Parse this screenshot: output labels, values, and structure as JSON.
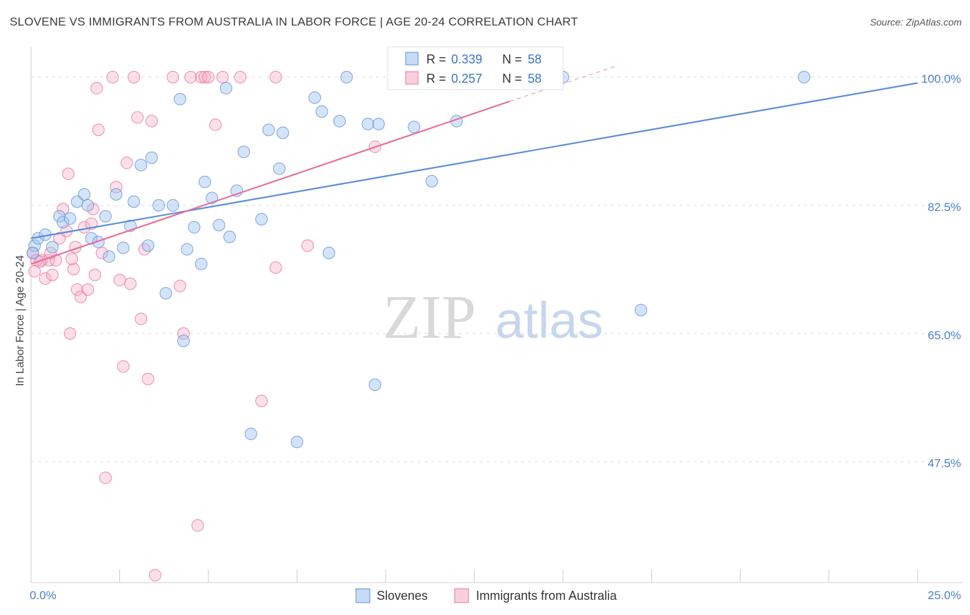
{
  "title": "SLOVENE VS IMMIGRANTS FROM AUSTRALIA IN LABOR FORCE | AGE 20-24 CORRELATION CHART",
  "source": "Source: ZipAtlas.com",
  "watermark": {
    "zip": "ZIP",
    "atlas": "atlas"
  },
  "colors": {
    "blue": "#5b8fd8",
    "blue_fill": "rgba(160,195,240,0.45)",
    "pink": "#e8709b",
    "pink_fill": "rgba(245,175,200,0.40)",
    "grid": "#dddddd"
  },
  "legend": {
    "items": [
      {
        "r_label": "R =",
        "r_value": "0.339",
        "n_label": "N =",
        "n_value": "58"
      },
      {
        "r_label": "R =",
        "r_value": "0.257",
        "n_label": "N =",
        "n_value": "58"
      }
    ]
  },
  "chart_data": {
    "type": "scatter",
    "xlabel": "",
    "ylabel": "In Labor Force | Age 20-24",
    "xlim": [
      0,
      25
    ],
    "ylim": [
      31,
      103
    ],
    "x_tick_labels": [
      {
        "value": 0,
        "label": "0.0%"
      },
      {
        "value": 25,
        "label": "25.0%"
      }
    ],
    "y_ticks": [
      {
        "value": 100,
        "label": "100.0%"
      },
      {
        "value": 82.5,
        "label": "82.5%"
      },
      {
        "value": 65,
        "label": "65.0%"
      },
      {
        "value": 47.5,
        "label": "47.5%"
      }
    ],
    "grid": true,
    "legend_position": "top-center",
    "series": [
      {
        "name": "Slovenes",
        "color": "#5b8fd8",
        "trend": {
          "x0": 0,
          "y0": 78.0,
          "x1": 25,
          "y1": 99.2
        },
        "points": [
          [
            0.1,
            77.0
          ],
          [
            0.2,
            78.0
          ],
          [
            0.4,
            78.5
          ],
          [
            0.6,
            76.8
          ],
          [
            0.8,
            81.0
          ],
          [
            0.9,
            80.2
          ],
          [
            1.1,
            80.7
          ],
          [
            1.3,
            83.0
          ],
          [
            1.5,
            84.0
          ],
          [
            1.6,
            82.5
          ],
          [
            1.7,
            78.0
          ],
          [
            1.9,
            77.5
          ],
          [
            2.1,
            81.0
          ],
          [
            2.2,
            75.5
          ],
          [
            2.4,
            84.0
          ],
          [
            2.6,
            76.7
          ],
          [
            2.8,
            79.7
          ],
          [
            2.9,
            83.0
          ],
          [
            3.1,
            88.0
          ],
          [
            3.3,
            77.0
          ],
          [
            3.4,
            89.0
          ],
          [
            3.6,
            82.5
          ],
          [
            3.8,
            70.5
          ],
          [
            4.0,
            82.5
          ],
          [
            4.2,
            97.0
          ],
          [
            4.3,
            64.0
          ],
          [
            4.4,
            76.5
          ],
          [
            4.6,
            79.5
          ],
          [
            4.8,
            74.5
          ],
          [
            4.9,
            85.7
          ],
          [
            5.1,
            83.5
          ],
          [
            5.3,
            79.8
          ],
          [
            5.5,
            98.5
          ],
          [
            5.6,
            78.2
          ],
          [
            5.8,
            84.5
          ],
          [
            6.0,
            89.8
          ],
          [
            6.2,
            51.3
          ],
          [
            6.5,
            80.6
          ],
          [
            6.7,
            92.8
          ],
          [
            7.0,
            87.5
          ],
          [
            7.1,
            92.4
          ],
          [
            7.5,
            50.2
          ],
          [
            8.0,
            97.2
          ],
          [
            8.2,
            95.3
          ],
          [
            8.4,
            76.0
          ],
          [
            8.7,
            94.0
          ],
          [
            8.9,
            100.0
          ],
          [
            9.5,
            93.6
          ],
          [
            9.7,
            58.0
          ],
          [
            9.8,
            93.6
          ],
          [
            10.8,
            93.2
          ],
          [
            11.3,
            85.8
          ],
          [
            12.0,
            94.0
          ],
          [
            12.5,
            100.0
          ],
          [
            15.0,
            100.0
          ],
          [
            17.2,
            68.2
          ],
          [
            21.8,
            100.0
          ],
          [
            0.05,
            76.0
          ]
        ]
      },
      {
        "name": "Immigrants from Australia",
        "color": "#e8709b",
        "trend": {
          "x0": 0,
          "y0": 74.5,
          "x1": 13.5,
          "y1": 96.7,
          "dash_x1": 16.5,
          "dash_y1": 101.5
        },
        "points": [
          [
            0.05,
            76.0
          ],
          [
            0.1,
            73.5
          ],
          [
            0.15,
            75.0
          ],
          [
            0.3,
            75.0
          ],
          [
            0.4,
            72.5
          ],
          [
            0.5,
            75.0
          ],
          [
            0.6,
            73.0
          ],
          [
            0.7,
            75.0
          ],
          [
            0.8,
            78.0
          ],
          [
            0.9,
            82.0
          ],
          [
            1.0,
            79.0
          ],
          [
            1.05,
            86.8
          ],
          [
            1.1,
            65.0
          ],
          [
            1.2,
            73.8
          ],
          [
            1.3,
            71.0
          ],
          [
            1.4,
            70.0
          ],
          [
            1.5,
            79.5
          ],
          [
            1.6,
            71.0
          ],
          [
            1.7,
            80.0
          ],
          [
            1.75,
            82.0
          ],
          [
            1.8,
            73.0
          ],
          [
            1.85,
            98.5
          ],
          [
            1.9,
            92.8
          ],
          [
            2.0,
            76.0
          ],
          [
            2.1,
            45.3
          ],
          [
            2.3,
            100.0
          ],
          [
            2.4,
            85.0
          ],
          [
            2.5,
            72.3
          ],
          [
            2.6,
            60.5
          ],
          [
            2.7,
            88.3
          ],
          [
            2.8,
            71.8
          ],
          [
            2.9,
            100.0
          ],
          [
            3.0,
            94.5
          ],
          [
            3.1,
            67.0
          ],
          [
            3.2,
            76.5
          ],
          [
            3.3,
            58.8
          ],
          [
            3.4,
            94.0
          ],
          [
            3.5,
            32.0
          ],
          [
            4.0,
            100.0
          ],
          [
            4.2,
            71.5
          ],
          [
            4.3,
            65.0
          ],
          [
            4.5,
            100.0
          ],
          [
            4.7,
            38.8
          ],
          [
            4.8,
            100.0
          ],
          [
            4.9,
            100.0
          ],
          [
            5.0,
            100.0
          ],
          [
            5.2,
            93.5
          ],
          [
            5.4,
            100.0
          ],
          [
            5.9,
            100.0
          ],
          [
            6.9,
            100.0
          ],
          [
            6.5,
            55.8
          ],
          [
            6.9,
            74.0
          ],
          [
            7.8,
            77.0
          ],
          [
            9.7,
            90.5
          ],
          [
            0.25,
            74.8
          ],
          [
            0.55,
            76.0
          ],
          [
            1.15,
            75.2
          ],
          [
            1.25,
            76.8
          ]
        ]
      }
    ]
  }
}
